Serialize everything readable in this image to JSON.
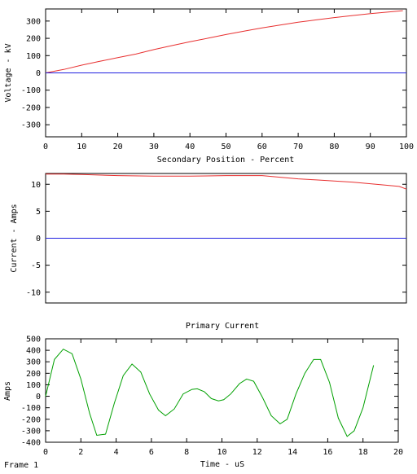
{
  "footer": {
    "frame_label": "Frame 1"
  },
  "colors": {
    "red_series": "#e83030",
    "blue_series": "#2020e0",
    "green_series": "#00a000",
    "frame": "#000000"
  },
  "chart_data": [
    {
      "type": "line",
      "title": "",
      "xlabel": "Secondary Position - Percent",
      "ylabel": "Voltage - kV",
      "xlim": [
        0,
        100
      ],
      "ylim": [
        -370,
        370
      ],
      "xticks": [
        0,
        10,
        20,
        30,
        40,
        50,
        60,
        70,
        80,
        90,
        100
      ],
      "yticks": [
        -300,
        -200,
        -100,
        0,
        100,
        200,
        300
      ],
      "grid": false,
      "series": [
        {
          "color": "#e83030",
          "x": [
            0,
            5,
            10,
            15,
            20,
            25,
            30,
            35,
            40,
            45,
            50,
            55,
            60,
            65,
            70,
            75,
            80,
            85,
            90,
            95,
            99
          ],
          "y": [
            0,
            20,
            45,
            67,
            88,
            109,
            135,
            158,
            180,
            201,
            222,
            242,
            260,
            277,
            293,
            307,
            320,
            332,
            343,
            352,
            360
          ]
        },
        {
          "color": "#2020e0",
          "x": [
            0,
            10,
            20,
            30,
            40,
            50,
            60,
            70,
            80,
            90,
            100
          ],
          "y": [
            0,
            0,
            0,
            0,
            0,
            0,
            0,
            0,
            0,
            0,
            0
          ]
        }
      ]
    },
    {
      "type": "line",
      "title": "",
      "xlabel": "",
      "ylabel": "Current - Amps",
      "xlim": [
        0,
        100
      ],
      "ylim": [
        -12,
        12
      ],
      "yticks": [
        -10,
        -5,
        0,
        5,
        10
      ],
      "grid": false,
      "series": [
        {
          "color": "#e83030",
          "x": [
            0,
            5,
            10,
            20,
            30,
            40,
            50,
            60,
            65,
            70,
            75,
            80,
            85,
            90,
            95,
            98,
            100
          ],
          "y": [
            11.9,
            11.9,
            11.8,
            11.6,
            11.5,
            11.5,
            11.6,
            11.6,
            11.3,
            11.0,
            10.8,
            10.6,
            10.4,
            10.1,
            9.8,
            9.6,
            9.1
          ]
        },
        {
          "color": "#2020e0",
          "x": [
            0,
            20,
            40,
            60,
            80,
            100
          ],
          "y": [
            0,
            0,
            0,
            0,
            0,
            0
          ]
        }
      ]
    },
    {
      "type": "line",
      "title": "Primary Current",
      "xlabel": "Time - uS",
      "ylabel": "Amps",
      "xlim": [
        0,
        20
      ],
      "ylim": [
        -400,
        500
      ],
      "xticks": [
        0,
        2,
        4,
        6,
        8,
        10,
        12,
        14,
        16,
        18,
        20
      ],
      "yticks": [
        -400,
        -300,
        -200,
        -100,
        0,
        100,
        200,
        300,
        400,
        500
      ],
      "grid": false,
      "series": [
        {
          "color": "#00a000",
          "x": [
            0,
            0.5,
            1.0,
            1.5,
            2.0,
            2.5,
            2.9,
            3.4,
            3.9,
            4.4,
            4.9,
            5.4,
            5.9,
            6.4,
            6.8,
            7.3,
            7.8,
            8.3,
            8.6,
            9.0,
            9.4,
            9.8,
            10.1,
            10.5,
            11.0,
            11.4,
            11.8,
            12.3,
            12.8,
            13.3,
            13.7,
            14.2,
            14.7,
            15.2,
            15.6,
            16.1,
            16.6,
            17.1,
            17.5,
            18.0,
            18.6
          ],
          "y": [
            0,
            320,
            410,
            370,
            150,
            -150,
            -340,
            -330,
            -60,
            180,
            280,
            210,
            20,
            -120,
            -170,
            -110,
            20,
            60,
            65,
            40,
            -20,
            -40,
            -30,
            20,
            110,
            150,
            130,
            -10,
            -170,
            -240,
            -200,
            20,
            200,
            320,
            320,
            120,
            -190,
            -350,
            -300,
            -100,
            270
          ]
        }
      ]
    }
  ]
}
